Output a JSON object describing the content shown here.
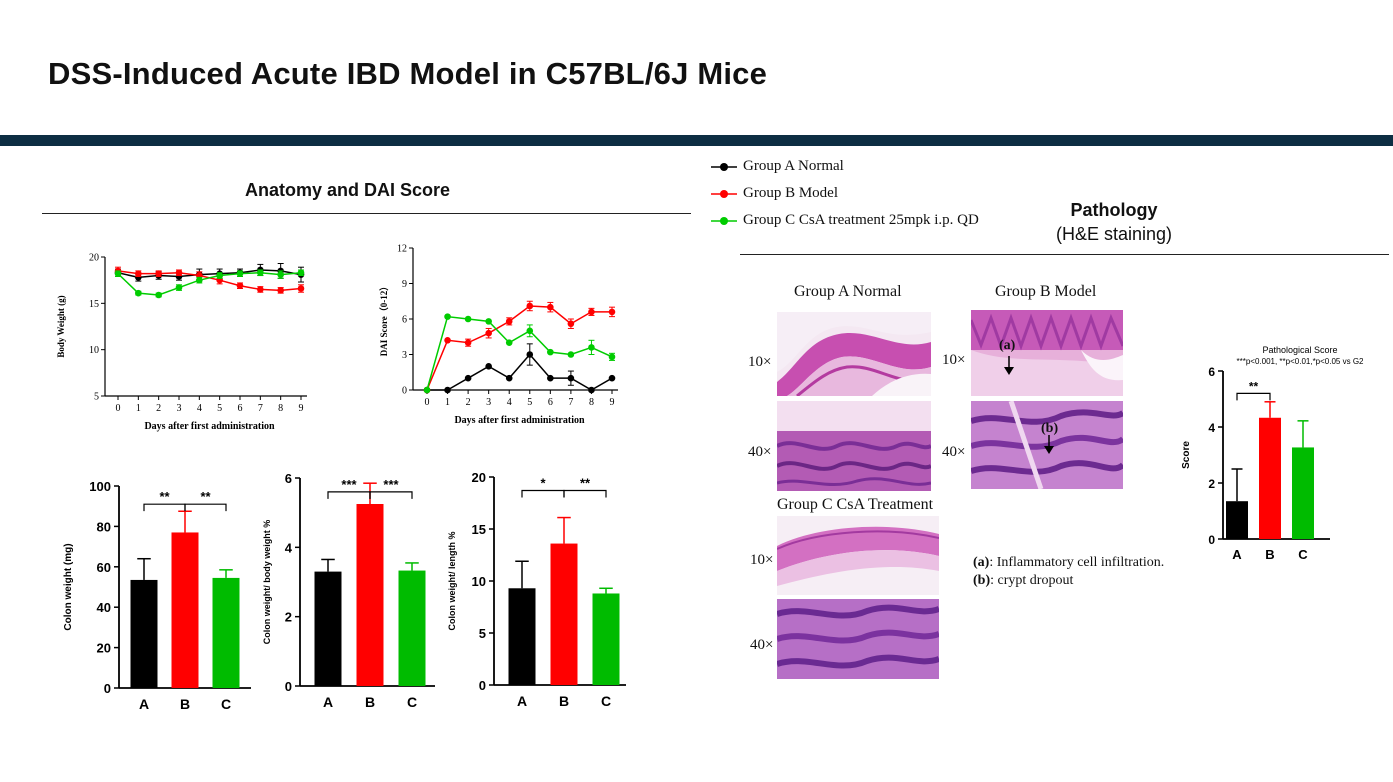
{
  "page": {
    "title": "DSS-Induced Acute IBD Model in C57BL/6J Mice",
    "band_color": "#0d2e43"
  },
  "legend": {
    "items": [
      {
        "label": "Group A Normal",
        "color": "#000000"
      },
      {
        "label": "Group B Model",
        "color": "#ff0000"
      },
      {
        "label": "Group C CsA treatment 25mpk i.p. QD",
        "color": "#00cc00"
      }
    ]
  },
  "anatomy": {
    "title": "Anatomy and DAI Score"
  },
  "pathology": {
    "title": "Pathology",
    "subtitle": "(H&E staining)",
    "groups": [
      {
        "title": "Group A Normal",
        "mag_low": "10×",
        "mag_high": "40×"
      },
      {
        "title": "Group B Model",
        "mag_low": "10×",
        "mag_high": "40×",
        "marker_a": "(a)",
        "marker_b": "(b)"
      },
      {
        "title": "Group C CsA Treatment",
        "mag_low": "10×",
        "mag_high": "40×"
      }
    ],
    "notes": [
      {
        "key": "(a)",
        "text": ": Inflammatory cell infiltration."
      },
      {
        "key": "(b)",
        "text": ": crypt dropout"
      }
    ]
  },
  "chart_data": [
    {
      "id": "body-weight",
      "type": "line",
      "xlabel": "Days after first administration",
      "ylabel": "Body Weight (g)",
      "x": [
        0,
        1,
        2,
        3,
        4,
        5,
        6,
        7,
        8,
        9
      ],
      "xticks": [
        "0",
        "1",
        "2",
        "3",
        "4",
        "5",
        "6",
        "7",
        "8",
        "9"
      ],
      "ylim": [
        5,
        20
      ],
      "yticks": [
        5,
        10,
        15,
        20
      ],
      "series": [
        {
          "name": "Group A Normal",
          "color": "#000000",
          "values": [
            18.3,
            17.8,
            18.0,
            17.9,
            18.1,
            18.2,
            18.3,
            18.6,
            18.5,
            18.1
          ],
          "err": [
            0.4,
            0.4,
            0.4,
            0.4,
            0.6,
            0.5,
            0.4,
            0.6,
            0.8,
            0.8
          ]
        },
        {
          "name": "Group B Model",
          "color": "#ff0000",
          "values": [
            18.5,
            18.2,
            18.2,
            18.3,
            18.0,
            17.5,
            16.9,
            16.5,
            16.4,
            16.6
          ],
          "err": [
            0.4,
            0.3,
            0.3,
            0.3,
            0.4,
            0.4,
            0.3,
            0.3,
            0.3,
            0.4
          ]
        },
        {
          "name": "Group C CsA treatment 25mpk i.p. QD",
          "color": "#00cc00",
          "values": [
            18.2,
            16.1,
            15.9,
            16.7,
            17.5,
            18.0,
            18.2,
            18.3,
            18.1,
            18.3
          ],
          "err": [
            0.3,
            0.2,
            0.2,
            0.3,
            0.3,
            0.3,
            0.3,
            0.3,
            0.4,
            0.3
          ]
        }
      ]
    },
    {
      "id": "dai-score",
      "type": "line",
      "xlabel": "Days after first administration",
      "ylabel": "DAI Score（0-12）",
      "x": [
        0,
        1,
        2,
        3,
        4,
        5,
        6,
        7,
        8,
        9
      ],
      "xticks": [
        "0",
        "1",
        "2",
        "3",
        "4",
        "5",
        "6",
        "7",
        "8",
        "9"
      ],
      "ylim": [
        0,
        12
      ],
      "yticks": [
        0,
        3,
        6,
        9,
        12
      ],
      "series": [
        {
          "name": "Group A Normal",
          "color": "#000000",
          "values": [
            0,
            0,
            1,
            2,
            1,
            3,
            1,
            1,
            0,
            1
          ],
          "err": [
            0,
            0,
            0,
            0,
            0,
            0.9,
            0,
            0.6,
            0,
            0
          ]
        },
        {
          "name": "Group B Model",
          "color": "#ff0000",
          "values": [
            0,
            4.2,
            4.0,
            4.8,
            5.8,
            7.1,
            7.0,
            5.6,
            6.6,
            6.6
          ],
          "err": [
            0,
            0,
            0.3,
            0.4,
            0.3,
            0.4,
            0.4,
            0.4,
            0.3,
            0.4
          ]
        },
        {
          "name": "Group C CsA treatment 25mpk i.p. QD",
          "color": "#00cc00",
          "values": [
            0,
            6.2,
            6.0,
            5.8,
            4.0,
            5.0,
            3.2,
            3.0,
            3.6,
            2.8
          ],
          "err": [
            0,
            0,
            0,
            0,
            0,
            0.5,
            0,
            0,
            0.6,
            0.3
          ]
        }
      ]
    },
    {
      "id": "colon-weight",
      "type": "bar",
      "ylabel": "Colon weight (mg)",
      "categories": [
        "A",
        "B",
        "C"
      ],
      "values": [
        53.5,
        77.0,
        54.5
      ],
      "err": [
        10.5,
        10.5,
        4.0
      ],
      "colors": [
        "#000000",
        "#ff0000",
        "#00bb00"
      ],
      "ylim": [
        0,
        100
      ],
      "yticks": [
        0,
        20,
        40,
        60,
        80,
        100
      ],
      "sig": [
        {
          "from": 0,
          "to": 1,
          "label": "**"
        },
        {
          "from": 1,
          "to": 2,
          "label": "**"
        }
      ]
    },
    {
      "id": "colon-ratio-bw",
      "type": "bar",
      "ylabel": "Colon weight/ body weight %",
      "categories": [
        "A",
        "B",
        "C"
      ],
      "values": [
        3.3,
        5.25,
        3.33
      ],
      "err": [
        0.35,
        0.6,
        0.22
      ],
      "colors": [
        "#000000",
        "#ff0000",
        "#00bb00"
      ],
      "ylim": [
        0,
        6
      ],
      "yticks": [
        0,
        2,
        4,
        6
      ],
      "sig": [
        {
          "from": 0,
          "to": 1,
          "label": "***"
        },
        {
          "from": 1,
          "to": 2,
          "label": "***"
        }
      ]
    },
    {
      "id": "colon-ratio-len",
      "type": "bar",
      "ylabel": "Colon weight/ length %",
      "categories": [
        "A",
        "B",
        "C"
      ],
      "values": [
        9.3,
        13.6,
        8.8
      ],
      "err": [
        2.6,
        2.5,
        0.5
      ],
      "colors": [
        "#000000",
        "#ff0000",
        "#00bb00"
      ],
      "ylim": [
        0,
        20
      ],
      "yticks": [
        0,
        5,
        10,
        15,
        20
      ],
      "sig": [
        {
          "from": 0,
          "to": 1,
          "label": "*"
        },
        {
          "from": 1,
          "to": 2,
          "label": "**"
        }
      ]
    },
    {
      "id": "pathological-score",
      "type": "bar",
      "title": "Pathological Score",
      "subtitle": "***p<0.001, **p<0.01,*p<0.05 vs G2",
      "ylabel": "Score",
      "categories": [
        "A",
        "B",
        "C"
      ],
      "values": [
        1.35,
        4.33,
        3.27
      ],
      "err": [
        1.15,
        0.57,
        0.95
      ],
      "colors": [
        "#000000",
        "#ff0000",
        "#00bb00"
      ],
      "ylim": [
        0,
        6
      ],
      "yticks": [
        0,
        2,
        4,
        6
      ],
      "sig": [
        {
          "from": 0,
          "to": 1,
          "label": "**"
        }
      ]
    }
  ]
}
